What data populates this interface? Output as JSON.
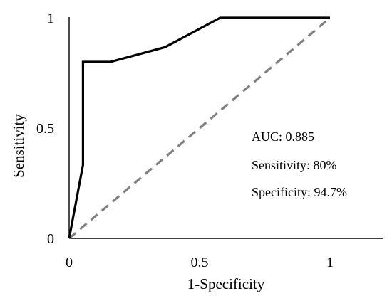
{
  "chart_data": {
    "type": "line",
    "xlabel": "1-Specificity",
    "ylabel": "Sensitivity",
    "xlim": [
      0,
      1.2
    ],
    "ylim": [
      0,
      1
    ],
    "x_ticks": [
      "0",
      "0.5",
      "1"
    ],
    "y_ticks": [
      "0",
      "0.5",
      "1"
    ],
    "grid": false,
    "series": [
      {
        "style": "solid",
        "color": "#000000",
        "x": [
          0,
          0.053,
          0.053,
          0.158,
          0.368,
          0.579,
          1.0
        ],
        "y": [
          0,
          0.333,
          0.8,
          0.8,
          0.867,
          1.0,
          1.0
        ]
      },
      {
        "style": "dashed",
        "color": "#808080",
        "x": [
          0,
          1
        ],
        "y": [
          0,
          1
        ]
      }
    ],
    "annotations": [
      "AUC: 0.885",
      "Sensitivity: 80%",
      "Specificity: 94.7%"
    ]
  }
}
